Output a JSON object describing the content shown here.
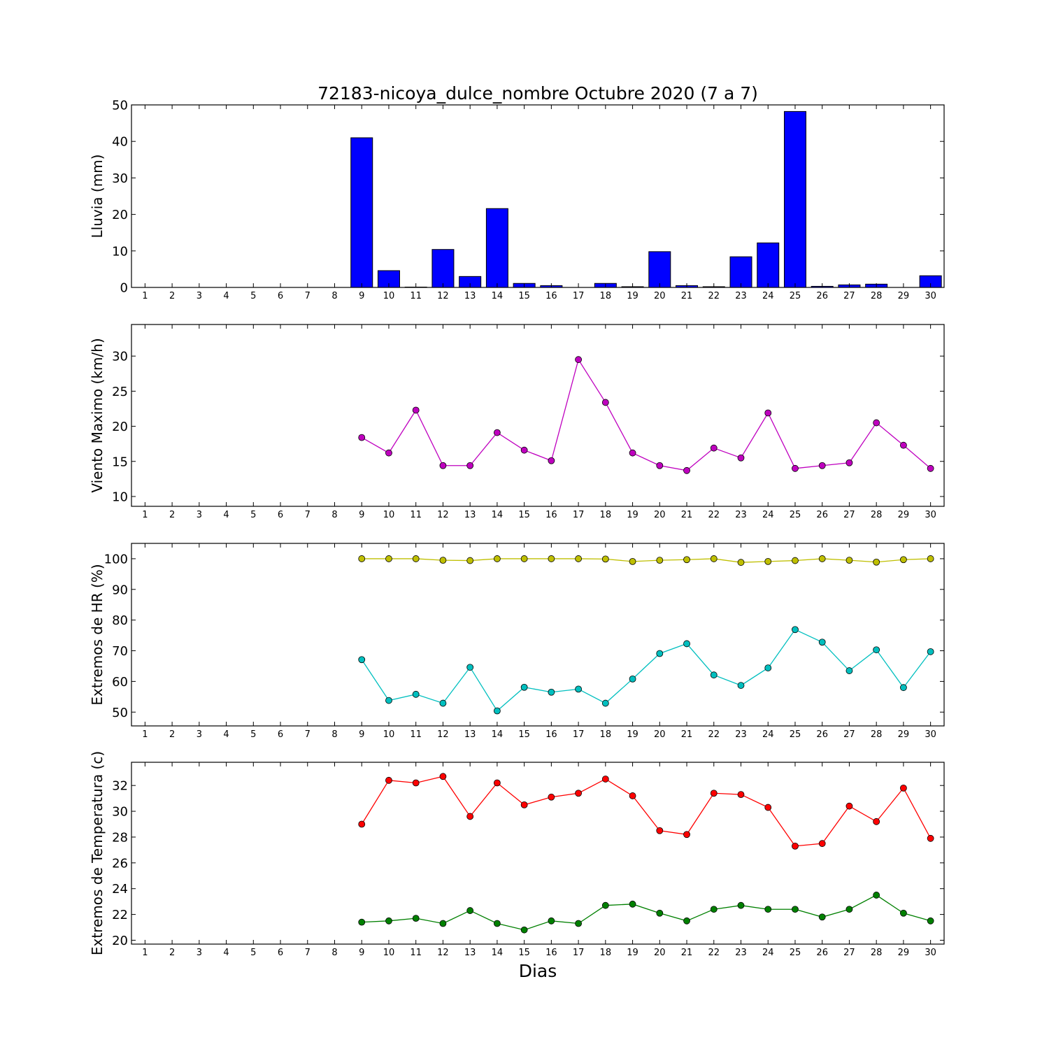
{
  "title": "72183-nicoya_dulce_nombre Octubre 2020  (7 a 7)",
  "xlabel": "Dias",
  "chart_data": [
    {
      "type": "bar",
      "ylabel": "Lluvia (mm)",
      "ylim": [
        0,
        50
      ],
      "yticks": [
        0,
        10,
        20,
        30,
        40,
        50
      ],
      "xlim": [
        0.5,
        30.5
      ],
      "categories": [
        1,
        2,
        3,
        4,
        5,
        6,
        7,
        8,
        9,
        10,
        11,
        12,
        13,
        14,
        15,
        16,
        17,
        18,
        19,
        20,
        21,
        22,
        23,
        24,
        25,
        26,
        27,
        28,
        29,
        30
      ],
      "series": [
        {
          "color": "#0000ff",
          "values": [
            null,
            null,
            null,
            null,
            null,
            null,
            null,
            null,
            41.0,
            4.6,
            0.1,
            10.4,
            3.0,
            21.6,
            1.1,
            0.5,
            0.0,
            1.1,
            0.2,
            9.8,
            0.5,
            0.2,
            8.4,
            12.2,
            48.2,
            0.3,
            0.7,
            0.9,
            0.0,
            3.2
          ]
        }
      ]
    },
    {
      "type": "line",
      "ylabel": "Viento Maximo (km/h)",
      "ylim": [
        8.6,
        34.5
      ],
      "yticks": [
        10,
        15,
        20,
        25,
        30
      ],
      "xlim": [
        0.5,
        30.5
      ],
      "categories": [
        1,
        2,
        3,
        4,
        5,
        6,
        7,
        8,
        9,
        10,
        11,
        12,
        13,
        14,
        15,
        16,
        17,
        18,
        19,
        20,
        21,
        22,
        23,
        24,
        25,
        26,
        27,
        28,
        29,
        30
      ],
      "series": [
        {
          "color": "#bf00bf",
          "values": [
            null,
            null,
            null,
            null,
            null,
            null,
            null,
            null,
            18.4,
            16.2,
            22.3,
            14.4,
            14.4,
            19.1,
            16.6,
            15.1,
            29.5,
            23.4,
            16.2,
            14.4,
            13.7,
            16.9,
            15.5,
            21.9,
            14.0,
            14.4,
            14.8,
            20.5,
            17.3,
            14.0
          ]
        }
      ]
    },
    {
      "type": "line",
      "ylabel": "Extremos de HR (%)",
      "ylim": [
        45.5,
        105
      ],
      "yticks": [
        50,
        60,
        70,
        80,
        90,
        100
      ],
      "xlim": [
        0.5,
        30.5
      ],
      "categories": [
        1,
        2,
        3,
        4,
        5,
        6,
        7,
        8,
        9,
        10,
        11,
        12,
        13,
        14,
        15,
        16,
        17,
        18,
        19,
        20,
        21,
        22,
        23,
        24,
        25,
        26,
        27,
        28,
        29,
        30
      ],
      "series": [
        {
          "color": "#bfbf00",
          "values": [
            null,
            null,
            null,
            null,
            null,
            null,
            null,
            null,
            100,
            100,
            100,
            99.5,
            99.4,
            100,
            100,
            100,
            100,
            99.9,
            99.1,
            99.5,
            99.7,
            100,
            98.8,
            99.1,
            99.4,
            100,
            99.5,
            98.9,
            99.7,
            100
          ]
        },
        {
          "color": "#00bfbf",
          "values": [
            null,
            null,
            null,
            null,
            null,
            null,
            null,
            null,
            67.1,
            53.8,
            55.8,
            52.9,
            64.6,
            50.4,
            58.1,
            56.5,
            57.5,
            52.9,
            60.8,
            69.1,
            72.3,
            62.1,
            58.7,
            64.4,
            76.9,
            72.8,
            63.5,
            70.3,
            58.0,
            69.7
          ]
        }
      ]
    },
    {
      "type": "line",
      "ylabel": "Extremos de Temperatura (c)",
      "ylim": [
        19.7,
        33.8
      ],
      "yticks": [
        20,
        22,
        24,
        26,
        28,
        30,
        32
      ],
      "xlim": [
        0.5,
        30.5
      ],
      "categories": [
        1,
        2,
        3,
        4,
        5,
        6,
        7,
        8,
        9,
        10,
        11,
        12,
        13,
        14,
        15,
        16,
        17,
        18,
        19,
        20,
        21,
        22,
        23,
        24,
        25,
        26,
        27,
        28,
        29,
        30
      ],
      "series": [
        {
          "color": "#ff0000",
          "values": [
            null,
            null,
            null,
            null,
            null,
            null,
            null,
            null,
            29.0,
            32.4,
            32.2,
            32.7,
            29.6,
            32.2,
            30.5,
            31.1,
            31.4,
            32.5,
            31.2,
            28.5,
            28.2,
            31.4,
            31.3,
            30.3,
            27.3,
            27.5,
            30.4,
            29.2,
            31.8,
            27.9
          ]
        },
        {
          "color": "#008000",
          "values": [
            null,
            null,
            null,
            null,
            null,
            null,
            null,
            null,
            21.4,
            21.5,
            21.7,
            21.3,
            22.3,
            21.3,
            20.8,
            21.5,
            21.3,
            22.7,
            22.8,
            22.1,
            21.5,
            22.4,
            22.7,
            22.4,
            22.4,
            21.8,
            22.4,
            23.5,
            22.1,
            21.5
          ]
        }
      ]
    }
  ]
}
